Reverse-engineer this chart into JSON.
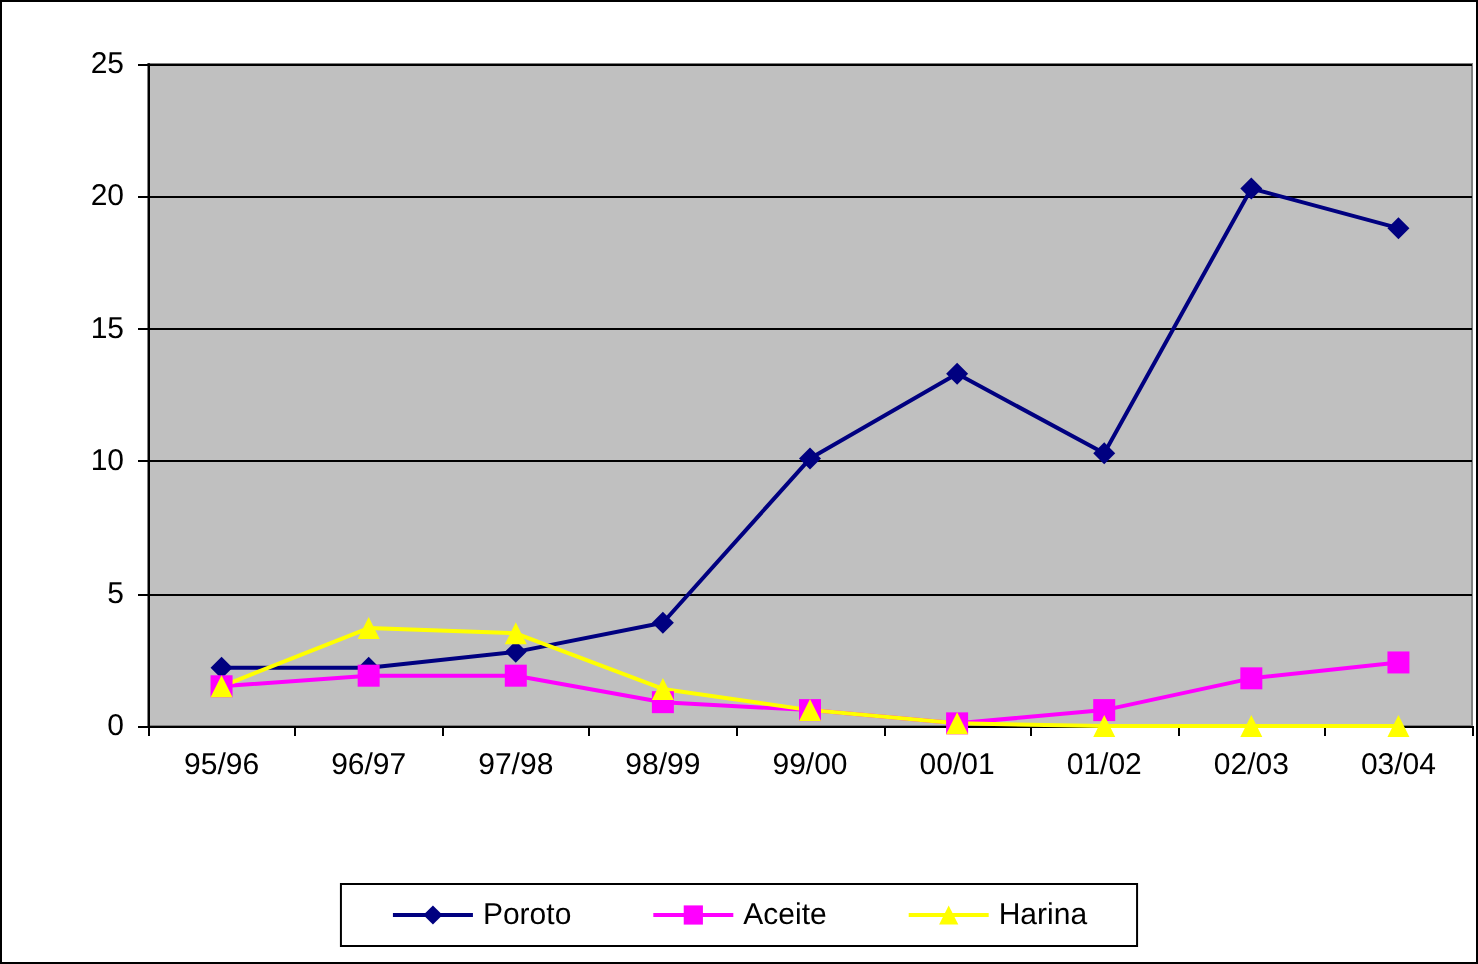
{
  "chart_data": {
    "type": "line",
    "categories": [
      "95/96",
      "96/97",
      "97/98",
      "98/99",
      "99/00",
      "00/01",
      "01/02",
      "02/03",
      "03/04"
    ],
    "series": [
      {
        "name": "Poroto",
        "color": "#000080",
        "marker": "diamond",
        "values": [
          2.2,
          2.2,
          2.8,
          3.9,
          10.1,
          13.3,
          10.3,
          20.3,
          18.8
        ]
      },
      {
        "name": "Aceite",
        "color": "#ff00ff",
        "marker": "square",
        "values": [
          1.5,
          1.9,
          1.9,
          0.9,
          0.6,
          0.1,
          0.6,
          1.8,
          2.4
        ]
      },
      {
        "name": "Harina",
        "color": "#ffff00",
        "marker": "triangle",
        "values": [
          1.5,
          3.7,
          3.5,
          1.4,
          0.6,
          0.1,
          0,
          0,
          0
        ]
      }
    ],
    "ylim": [
      0,
      25
    ],
    "yticks": [
      0,
      5,
      10,
      15,
      20,
      25
    ],
    "grid": "y",
    "legend": "bottom"
  }
}
